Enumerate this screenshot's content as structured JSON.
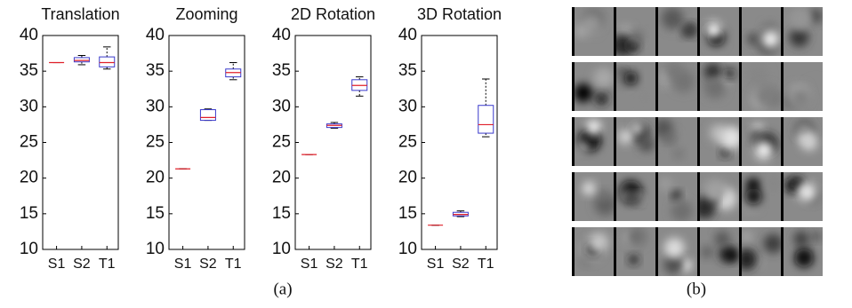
{
  "chart_data": [
    {
      "type": "box",
      "title": "Translation",
      "categories": [
        "S1",
        "S2",
        "T1"
      ],
      "low": [
        36.2,
        35.9,
        35.3
      ],
      "q1": [
        36.2,
        36.3,
        35.6
      ],
      "median": [
        36.2,
        36.5,
        36.2
      ],
      "q3": [
        36.2,
        36.9,
        37.0
      ],
      "high": [
        36.2,
        37.2,
        38.4
      ],
      "ylim": [
        10,
        40
      ],
      "yticks": [
        10,
        15,
        20,
        25,
        30,
        35,
        40
      ],
      "box_color": "#3a3acc",
      "median_color": "#e0202a"
    },
    {
      "type": "box",
      "title": "Zooming",
      "categories": [
        "S1",
        "S2",
        "T1"
      ],
      "low": [
        21.3,
        28.1,
        33.8
      ],
      "q1": [
        21.3,
        28.1,
        34.2
      ],
      "median": [
        21.3,
        28.5,
        34.8
      ],
      "q3": [
        21.3,
        29.6,
        35.3
      ],
      "high": [
        21.3,
        29.7,
        36.2
      ],
      "ylim": [
        10,
        40
      ],
      "yticks": [
        10,
        15,
        20,
        25,
        30,
        35,
        40
      ],
      "box_color": "#3a3acc",
      "median_color": "#e0202a"
    },
    {
      "type": "box",
      "title": "2D Rotation",
      "categories": [
        "S1",
        "S2",
        "T1"
      ],
      "low": [
        23.3,
        27.0,
        31.5
      ],
      "q1": [
        23.3,
        27.1,
        32.3
      ],
      "median": [
        23.3,
        27.4,
        33.0
      ],
      "q3": [
        23.3,
        27.6,
        33.8
      ],
      "high": [
        23.3,
        27.8,
        34.2
      ],
      "ylim": [
        10,
        40
      ],
      "yticks": [
        10,
        15,
        20,
        25,
        30,
        35,
        40
      ],
      "box_color": "#3a3acc",
      "median_color": "#e0202a"
    },
    {
      "type": "box",
      "title": "3D Rotation",
      "categories": [
        "S1",
        "S2",
        "T1"
      ],
      "low": [
        13.4,
        14.6,
        25.8
      ],
      "q1": [
        13.4,
        14.7,
        26.3
      ],
      "median": [
        13.4,
        14.9,
        27.5
      ],
      "q3": [
        13.4,
        15.2,
        30.2
      ],
      "high": [
        13.4,
        15.4,
        33.9
      ],
      "ylim": [
        10,
        40
      ],
      "yticks": [
        10,
        15,
        20,
        25,
        30,
        35,
        40
      ],
      "box_color": "#3a3acc",
      "median_color": "#e0202a"
    }
  ],
  "captions": {
    "a": "(a)",
    "b": "(b)"
  }
}
